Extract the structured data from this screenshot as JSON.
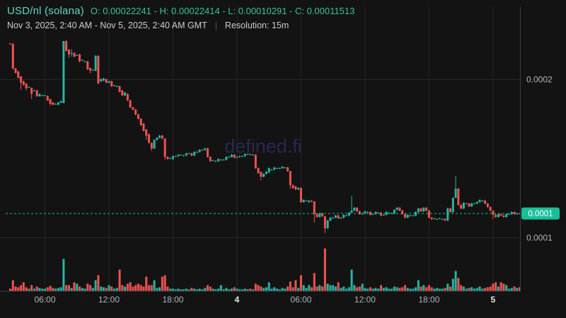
{
  "header": {
    "symbol": "USD/nl (solana)",
    "ohlc_text": "O: 0.00022241 - H: 0.00022414 - L: 0.00010291 - C: 0.00011513",
    "open": "0.00022241",
    "high": "0.00022414",
    "low": "0.00010291",
    "close": "0.00011513",
    "range_text": "Nov 3, 2025, 2:40 AM - Nov 5, 2025, 2:40 AM GMT",
    "separator": "|",
    "resolution_text": "Resolution: 15m"
  },
  "watermark": "defined.fi",
  "price_axis": {
    "labels": [
      {
        "text": "0.0002",
        "price": 20000
      },
      {
        "text": "0.0001",
        "price": 10000
      }
    ],
    "current_price_label": "0.0001",
    "current_price": 11513
  },
  "time_axis": {
    "labels": [
      {
        "text": "06:00",
        "idx": 13,
        "bold": false
      },
      {
        "text": "12:00",
        "idx": 37,
        "bold": false
      },
      {
        "text": "18:00",
        "idx": 61,
        "bold": false
      },
      {
        "text": "4",
        "idx": 85,
        "bold": true
      },
      {
        "text": "06:00",
        "idx": 109,
        "bold": false
      },
      {
        "text": "12:00",
        "idx": 133,
        "bold": false
      },
      {
        "text": "18:00",
        "idx": 157,
        "bold": false
      },
      {
        "text": "5",
        "idx": 181,
        "bold": true
      }
    ]
  },
  "colors": {
    "background": "#131313",
    "up": "#2ab3a3",
    "down": "#ef5350",
    "accent": "#18c09a",
    "badge_text": "#ffffff",
    "grid": "#262626",
    "axis_border": "#3d3d3d",
    "axis_text": "#b2b5be",
    "axis_text_bold": "#e6e8ea",
    "watermark": "#2a2750"
  },
  "chart_data": {
    "type": "candlestick",
    "title": "USD/nl (solana)",
    "resolution": "15m",
    "time_start": "Nov 3, 2025, 2:40 AM GMT",
    "time_end": "Nov 5, 2025, 2:40 AM GMT",
    "price_scale": 1e-08,
    "ohlc_summary": {
      "open": 22241,
      "high": 22414,
      "low": 10291,
      "close": 11513
    },
    "ylim": [
      9600,
      22540
    ],
    "legend_position": "none",
    "grid": true,
    "candles": [
      [
        22241,
        22231
      ],
      [
        22231,
        20669
      ],
      [
        20669,
        20401
      ],
      [
        20490,
        20088
      ],
      [
        20177,
        19775,
        20177,
        19329
      ],
      [
        19864,
        19641
      ],
      [
        19730,
        19418,
        19730,
        19284
      ],
      [
        19507,
        19507
      ],
      [
        19463,
        19061,
        19463,
        18749
      ],
      [
        19284,
        19284
      ],
      [
        19284,
        18927
      ],
      [
        18927,
        19061
      ],
      [
        18972,
        18972
      ],
      [
        18972,
        18972
      ],
      [
        18927,
        18659
      ],
      [
        18748,
        18436,
        18748,
        18302
      ],
      [
        18525,
        18391
      ],
      [
        18436,
        18436
      ],
      [
        18391,
        18525
      ],
      [
        18525,
        18615
      ],
      [
        18480,
        22410,
        22414,
        18480
      ],
      [
        22410,
        21785
      ],
      [
        21875,
        21562,
        21875,
        21339
      ],
      [
        21651,
        21651,
        21875,
        21430
      ],
      [
        21651,
        21428
      ],
      [
        21517,
        21517
      ],
      [
        21562,
        21116
      ],
      [
        21205,
        21205
      ],
      [
        21116,
        21116
      ],
      [
        21116,
        20625
      ],
      [
        20714,
        20535,
        20714,
        20356
      ],
      [
        20580,
        20580
      ],
      [
        20535,
        21472
      ],
      [
        21472,
        19731
      ],
      [
        19866,
        20000
      ],
      [
        19910,
        20043
      ],
      [
        20000,
        19775
      ],
      [
        19775,
        19866
      ],
      [
        19866,
        19552
      ],
      [
        19596,
        19596
      ],
      [
        19552,
        19552
      ],
      [
        19552,
        19195
      ],
      [
        19284,
        18972
      ],
      [
        18972,
        19150
      ],
      [
        19061,
        18659
      ],
      [
        18659,
        18213
      ],
      [
        18213,
        18079
      ],
      [
        18079,
        17767
      ],
      [
        17767,
        17498
      ],
      [
        17498,
        17096
      ],
      [
        17186,
        16740
      ],
      [
        16829,
        16427,
        16829,
        16159
      ],
      [
        16516,
        15981
      ],
      [
        15981,
        15624,
        15981,
        15445
      ],
      [
        15624,
        16159
      ],
      [
        16159,
        16293
      ],
      [
        16293,
        16427
      ],
      [
        16427,
        16248
      ],
      [
        16248,
        15088,
        16248,
        14909
      ],
      [
        15088,
        14954
      ],
      [
        14999,
        14999
      ],
      [
        14954,
        15133
      ],
      [
        15133,
        15133
      ],
      [
        15133,
        15222
      ],
      [
        15222,
        15222
      ],
      [
        15177,
        15177
      ],
      [
        15177,
        15311
      ],
      [
        15311,
        15311
      ],
      [
        15311,
        15177
      ],
      [
        15177,
        15400
      ],
      [
        15400,
        15400
      ],
      [
        15400,
        15535
      ],
      [
        15535,
        15535
      ],
      [
        15535,
        15624
      ],
      [
        15624,
        15088
      ],
      [
        15088,
        14820
      ],
      [
        14865,
        14865
      ],
      [
        14820,
        14820
      ],
      [
        14820,
        14954
      ],
      [
        14909,
        14909
      ],
      [
        14909,
        14909
      ],
      [
        14909,
        15088
      ],
      [
        15088,
        15088
      ],
      [
        15088,
        15222
      ],
      [
        15222,
        15043
      ],
      [
        15043,
        15088
      ],
      [
        15088,
        15133
      ],
      [
        15133,
        15133
      ],
      [
        15133,
        15266
      ],
      [
        15266,
        15266
      ],
      [
        15266,
        15222
      ],
      [
        15222,
        15222
      ],
      [
        15222,
        14374
      ],
      [
        14374,
        14061
      ],
      [
        14150,
        13838,
        14150,
        13615
      ],
      [
        13838,
        14016
      ],
      [
        14016,
        14150
      ],
      [
        14105,
        14374
      ],
      [
        14284,
        14284
      ],
      [
        14284,
        14418
      ],
      [
        14374,
        14374
      ],
      [
        14374,
        14374
      ],
      [
        14374,
        14463
      ],
      [
        14418,
        14418
      ],
      [
        14418,
        14195
      ],
      [
        14195,
        13302,
        14195,
        13079
      ],
      [
        13302,
        13124
      ],
      [
        13214,
        13035
      ],
      [
        13035,
        13124
      ],
      [
        13124,
        12231
      ],
      [
        12231,
        12365
      ],
      [
        12321,
        12321
      ],
      [
        12231,
        12321
      ],
      [
        12321,
        12276
      ],
      [
        12276,
        11473,
        12276,
        10937
      ],
      [
        11473,
        11294
      ],
      [
        11294,
        11518
      ],
      [
        11518,
        11339
      ],
      [
        11339,
        10580,
        11339,
        10291
      ],
      [
        10580,
        11071
      ],
      [
        11071,
        11250
      ],
      [
        11250,
        11250
      ],
      [
        11250,
        11384
      ],
      [
        11384,
        11205
      ],
      [
        11205,
        11250
      ],
      [
        11250,
        11428
      ],
      [
        11384,
        11384
      ],
      [
        11384,
        11562
      ],
      [
        11562,
        11696,
        12633,
        11562
      ],
      [
        11696,
        11875
      ],
      [
        11875,
        11651
      ],
      [
        11651,
        11473
      ],
      [
        11473,
        11518
      ],
      [
        11518,
        11651
      ],
      [
        11607,
        11607
      ],
      [
        11607,
        11428
      ],
      [
        11473,
        11473
      ],
      [
        11473,
        11607
      ],
      [
        11562,
        11562
      ],
      [
        11562,
        11384
      ],
      [
        11428,
        11428
      ],
      [
        11428,
        11607
      ],
      [
        11562,
        11562
      ],
      [
        11518,
        11518
      ],
      [
        11518,
        11740
      ],
      [
        11740,
        11875
      ],
      [
        11875,
        11696
      ],
      [
        11696,
        11473
      ],
      [
        11473,
        11250
      ],
      [
        11250,
        11428
      ],
      [
        11384,
        11384
      ],
      [
        11384,
        11384
      ],
      [
        11384,
        11607
      ],
      [
        11607,
        11829
      ],
      [
        11829,
        11651
      ],
      [
        11651,
        11875
      ],
      [
        11875,
        11696
      ],
      [
        11696,
        11250
      ],
      [
        11250,
        11161
      ],
      [
        11205,
        11205
      ],
      [
        11161,
        11161
      ],
      [
        11205,
        11205
      ],
      [
        11161,
        11161
      ],
      [
        11161,
        11071
      ],
      [
        11071,
        11829
      ],
      [
        11829,
        11607
      ],
      [
        11607,
        12499
      ],
      [
        12499,
        13079,
        13883,
        12499
      ],
      [
        13079,
        12053
      ],
      [
        12053,
        11829
      ],
      [
        11829,
        12187
      ],
      [
        12142,
        12142
      ],
      [
        12142,
        11964
      ],
      [
        11964,
        12142
      ],
      [
        12142,
        12142
      ],
      [
        12142,
        12231
      ],
      [
        12231,
        12365
      ],
      [
        12321,
        12321
      ],
      [
        12321,
        12142
      ],
      [
        12142,
        11919
      ],
      [
        11919,
        11696
      ],
      [
        11696,
        11428,
        11696,
        11161
      ],
      [
        11428,
        11294
      ],
      [
        11294,
        11473
      ],
      [
        11473,
        11384
      ],
      [
        11384,
        11294
      ],
      [
        11294,
        11473
      ],
      [
        11473,
        11473
      ],
      [
        11473,
        11607
      ],
      [
        11607,
        11473
      ],
      [
        11473,
        11518
      ],
      [
        11518,
        11513
      ]
    ],
    "volume_rel": [
      3,
      15,
      6,
      5,
      8,
      12,
      5,
      3,
      8,
      3,
      6,
      4,
      3,
      3,
      5,
      7,
      4,
      3,
      4,
      5,
      45,
      8,
      8,
      4,
      12,
      10,
      6,
      4,
      3,
      10,
      8,
      4,
      15,
      22,
      6,
      5,
      4,
      8,
      6,
      3,
      4,
      30,
      8,
      6,
      10,
      12,
      6,
      8,
      10,
      8,
      6,
      20,
      8,
      8,
      15,
      4,
      5,
      20,
      22,
      6,
      3,
      3,
      2,
      3,
      2,
      2,
      3,
      2,
      4,
      3,
      2,
      3,
      2,
      4,
      8,
      6,
      3,
      2,
      3,
      8,
      2,
      4,
      2,
      3,
      5,
      3,
      2,
      2,
      3,
      2,
      3,
      2,
      10,
      8,
      6,
      4,
      5,
      12,
      3,
      5,
      3,
      2,
      4,
      3,
      6,
      13,
      5,
      15,
      4,
      22,
      8,
      4,
      8,
      5,
      25,
      6,
      8,
      6,
      60,
      10,
      8,
      8,
      6,
      12,
      4,
      6,
      3,
      5,
      30,
      8,
      5,
      6,
      10,
      4,
      3,
      5,
      3,
      4,
      3,
      8,
      4,
      5,
      3,
      3,
      6,
      5,
      4,
      5,
      8,
      4,
      3,
      3,
      5,
      15,
      6,
      8,
      5,
      8,
      5,
      3,
      4,
      3,
      3,
      4,
      10,
      6,
      17,
      28,
      18,
      8,
      6,
      3,
      4,
      5,
      3,
      4,
      6,
      3,
      4,
      5,
      6,
      10,
      12,
      6,
      12,
      10,
      8,
      3,
      4,
      6,
      4,
      5
    ]
  }
}
